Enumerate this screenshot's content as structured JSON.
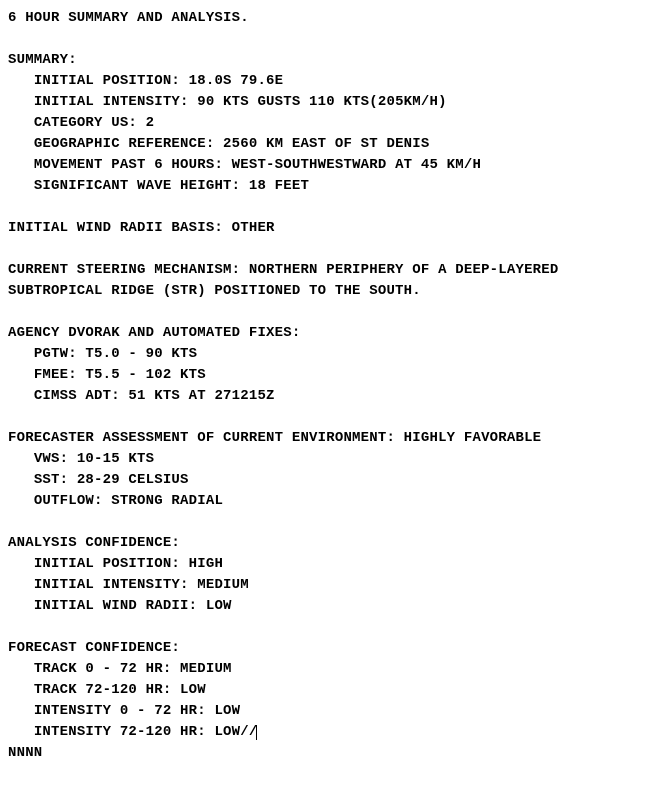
{
  "font": {
    "family": "monospace",
    "size_pt": 14,
    "weight": "bold",
    "color": "#000000"
  },
  "background_color": "#ffffff",
  "indent": "   ",
  "title": "6 HOUR SUMMARY AND ANALYSIS.",
  "summary": {
    "heading": "SUMMARY:",
    "initial_position": "INITIAL POSITION: 18.0S 79.6E",
    "initial_intensity": "INITIAL INTENSITY: 90 KTS GUSTS 110 KTS(205KM/H)",
    "category_us": "CATEGORY US: 2",
    "geographic_reference": "GEOGRAPHIC REFERENCE: 2560 KM EAST OF ST DENIS",
    "movement": "MOVEMENT PAST 6 HOURS: WEST-SOUTHWESTWARD AT 45 KM/H",
    "wave_height": "SIGNIFICANT WAVE HEIGHT: 18 FEET"
  },
  "wind_radii_basis": "INITIAL WIND RADII BASIS: OTHER",
  "steering": {
    "line1": "CURRENT STEERING MECHANISM: NORTHERN PERIPHERY OF A DEEP-LAYERED",
    "line2": "SUBTROPICAL RIDGE (STR) POSITIONED TO THE SOUTH."
  },
  "dvorak": {
    "heading": "AGENCY DVORAK AND AUTOMATED FIXES:",
    "pgtw": "PGTW: T5.0 - 90 KTS",
    "fmee": "FMEE: T5.5 - 102 KTS",
    "cimss": "CIMSS ADT: 51 KTS AT 271215Z"
  },
  "environment": {
    "heading": "FORECASTER ASSESSMENT OF CURRENT ENVIRONMENT: HIGHLY FAVORABLE",
    "vws": "VWS: 10-15 KTS",
    "sst": "SST: 28-29 CELSIUS",
    "outflow": "OUTFLOW: STRONG RADIAL"
  },
  "analysis_confidence": {
    "heading": "ANALYSIS CONFIDENCE:",
    "position": "INITIAL POSITION: HIGH",
    "intensity": "INITIAL INTENSITY: MEDIUM",
    "radii": "INITIAL WIND RADII: LOW"
  },
  "forecast_confidence": {
    "heading": "FORECAST CONFIDENCE:",
    "track_0_72": "TRACK 0 - 72 HR: MEDIUM",
    "track_72_120": "TRACK 72-120 HR: LOW",
    "intensity_0_72": "INTENSITY 0 - 72 HR: LOW",
    "intensity_72_120": "INTENSITY 72-120 HR: LOW//"
  },
  "terminator": "NNNN"
}
